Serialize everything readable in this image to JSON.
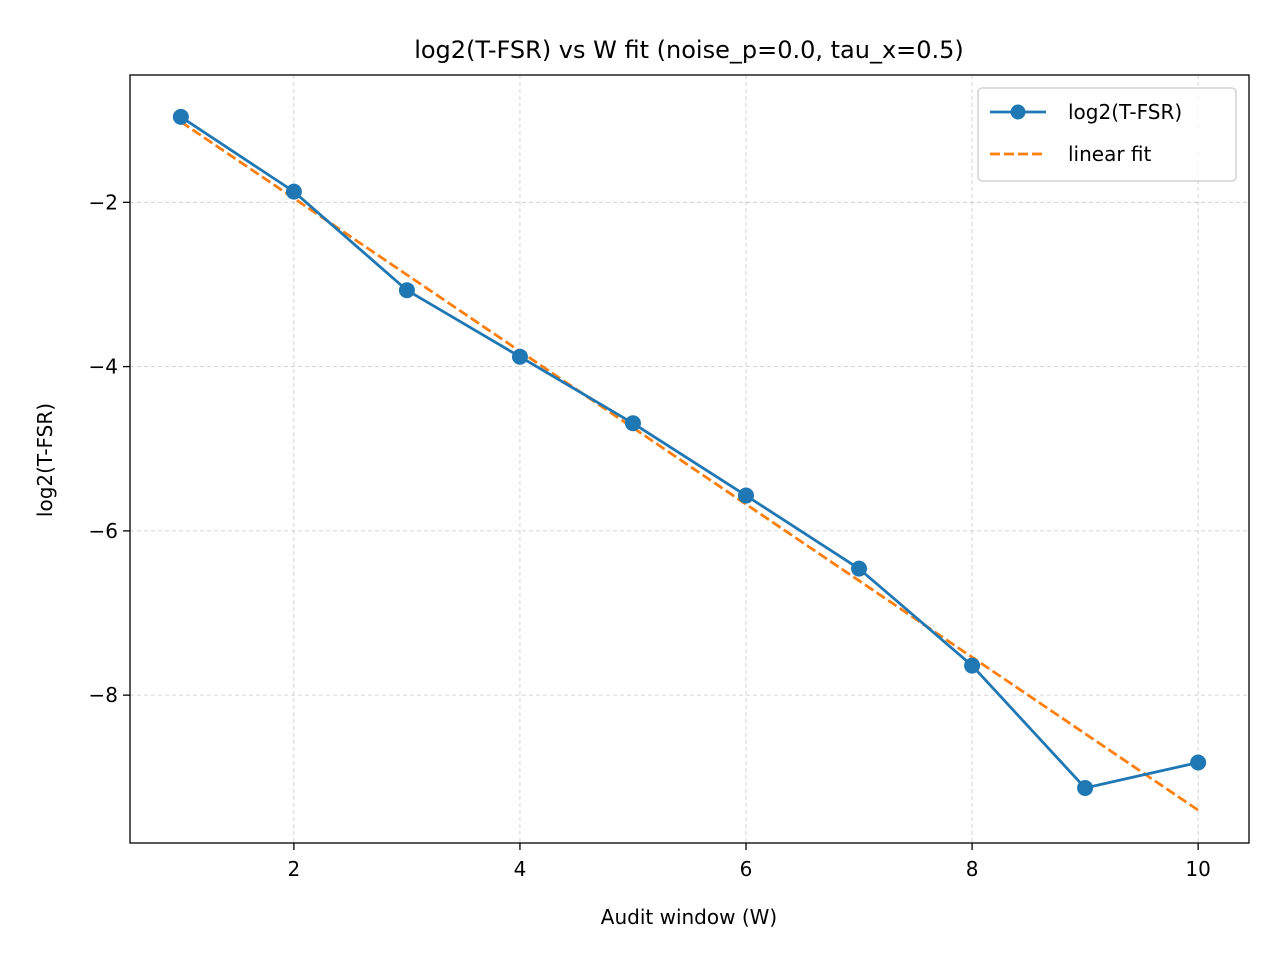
{
  "chart_data": {
    "type": "line",
    "title": "log2(T-FSR) vs W fit (noise_p=0.0, tau_x=0.5)",
    "xlabel": "Audit window (W)",
    "ylabel": "log2(T-FSR)",
    "xlim": [
      0.55,
      10.45
    ],
    "ylim": [
      -9.8,
      -0.45
    ],
    "xticks": [
      2,
      4,
      6,
      8,
      10
    ],
    "yticks": [
      -2,
      -4,
      -6,
      -8
    ],
    "xtick_labels": [
      "2",
      "4",
      "6",
      "8",
      "10"
    ],
    "ytick_labels": [
      "−2",
      "−4",
      "−6",
      "−8"
    ],
    "grid": true,
    "legend_position": "top-right",
    "series": [
      {
        "name": "log2(T-FSR)",
        "style": "solid-with-markers",
        "color": "#1f77b4",
        "x": [
          1,
          2,
          3,
          4,
          5,
          6,
          7,
          8,
          9,
          10
        ],
        "y": [
          -0.96,
          -1.87,
          -3.07,
          -3.88,
          -4.69,
          -5.57,
          -6.46,
          -7.64,
          -9.13,
          -8.82
        ]
      },
      {
        "name": "linear fit",
        "style": "dashed",
        "color": "#ff7f0e",
        "x": [
          1,
          10
        ],
        "y": [
          -1.02,
          -9.4
        ]
      }
    ]
  }
}
